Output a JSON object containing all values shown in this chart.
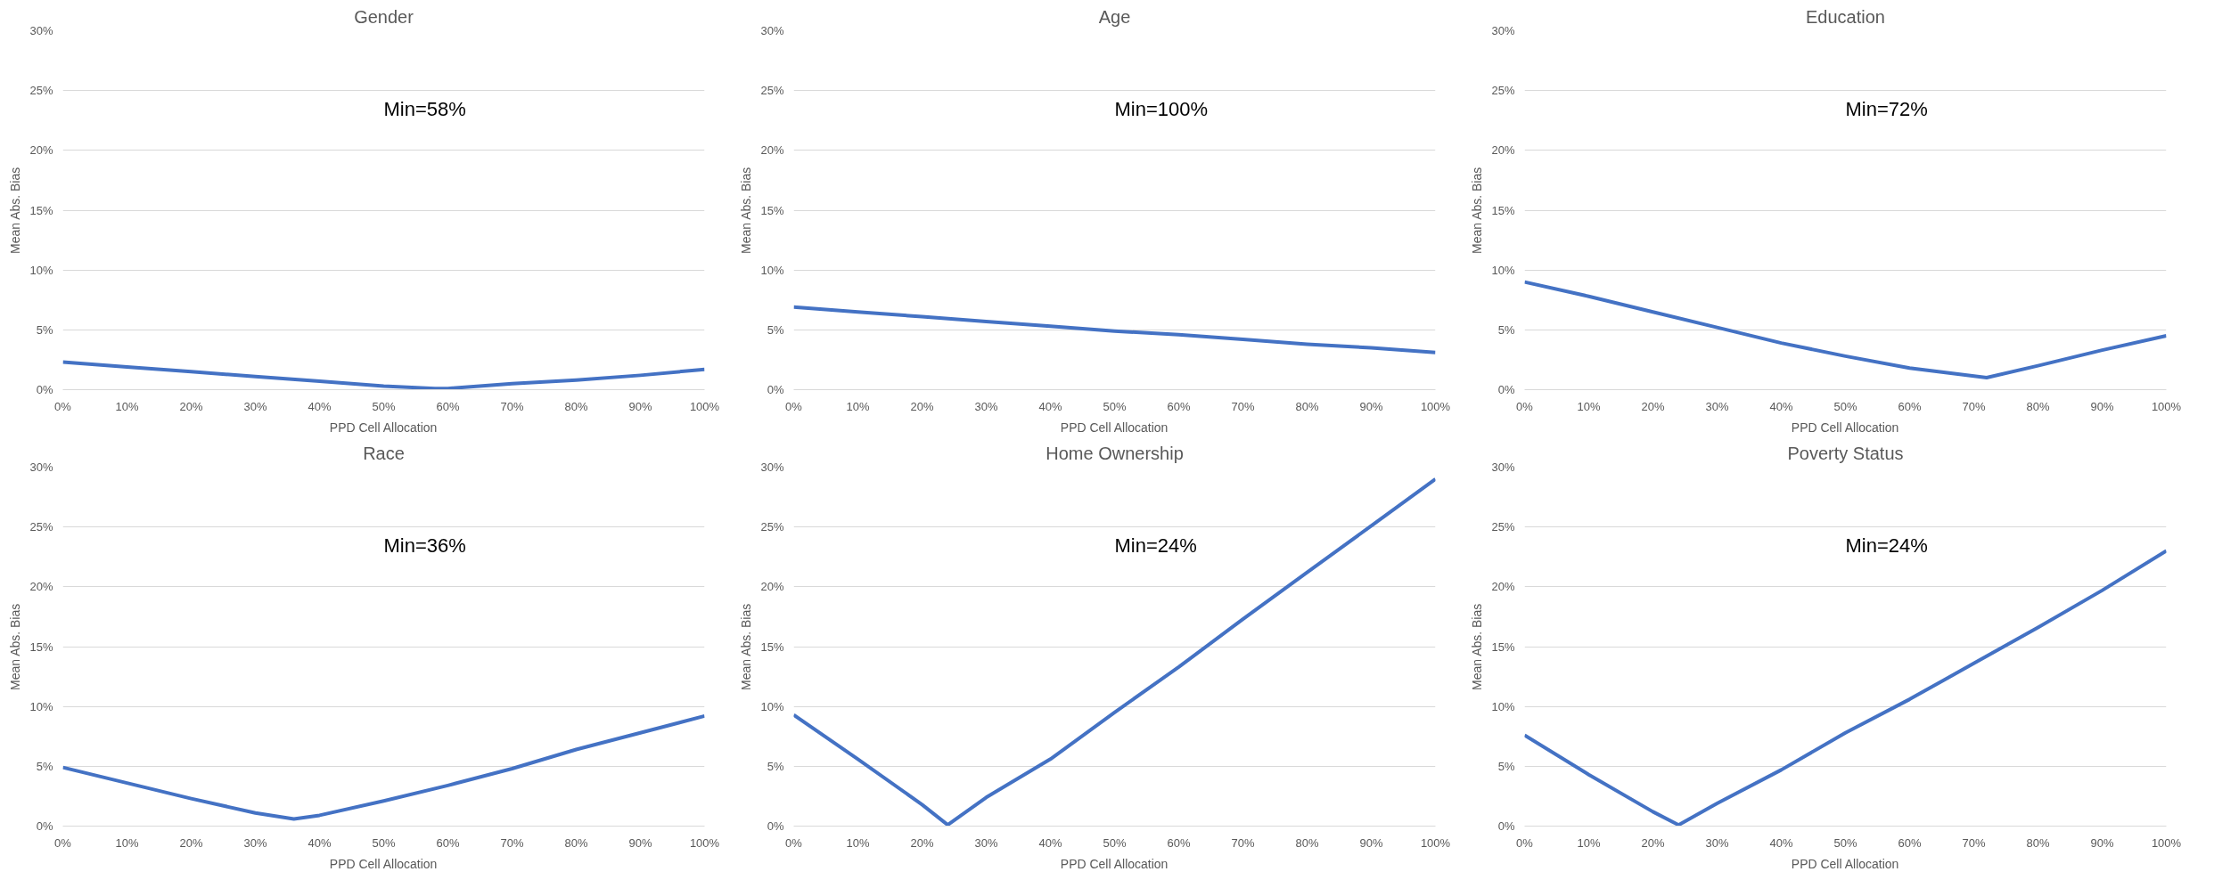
{
  "chart_data": [
    {
      "type": "line",
      "title": "Gender",
      "xlabel": "PPD Cell Allocation",
      "ylabel": "Mean Abs. Bias",
      "x": [
        0,
        10,
        20,
        30,
        40,
        50,
        58,
        60,
        70,
        80,
        90,
        100
      ],
      "values": [
        2.3,
        1.9,
        1.5,
        1.1,
        0.7,
        0.3,
        0.1,
        0.1,
        0.5,
        0.8,
        1.2,
        1.7
      ],
      "color": "#4472c4",
      "xlim": [
        0,
        100
      ],
      "ylim": [
        0,
        30
      ],
      "xticks": [
        {
          "value": 0,
          "label": "0%"
        },
        {
          "value": 10,
          "label": "10%"
        },
        {
          "value": 20,
          "label": "20%"
        },
        {
          "value": 30,
          "label": "30%"
        },
        {
          "value": 40,
          "label": "40%"
        },
        {
          "value": 50,
          "label": "50%"
        },
        {
          "value": 60,
          "label": "60%"
        },
        {
          "value": 70,
          "label": "70%"
        },
        {
          "value": 80,
          "label": "80%"
        },
        {
          "value": 90,
          "label": "90%"
        },
        {
          "value": 100,
          "label": "100%"
        }
      ],
      "yticks": [
        {
          "value": 0,
          "label": "0%"
        },
        {
          "value": 5,
          "label": "5%"
        },
        {
          "value": 10,
          "label": "10%"
        },
        {
          "value": 15,
          "label": "15%"
        },
        {
          "value": 20,
          "label": "20%"
        },
        {
          "value": 25,
          "label": "25%"
        },
        {
          "value": 30,
          "label": "30%"
        }
      ],
      "grid": "y",
      "annotations": [
        "Min=58%"
      ]
    },
    {
      "type": "line",
      "title": "Age",
      "xlabel": "PPD Cell Allocation",
      "ylabel": "Mean Abs. Bias",
      "x": [
        0,
        10,
        20,
        30,
        40,
        50,
        60,
        70,
        80,
        90,
        100
      ],
      "values": [
        6.9,
        6.5,
        6.1,
        5.7,
        5.3,
        4.9,
        4.6,
        4.2,
        3.8,
        3.5,
        3.1
      ],
      "color": "#4472c4",
      "xlim": [
        0,
        100
      ],
      "ylim": [
        0,
        30
      ],
      "xticks": [
        {
          "value": 0,
          "label": "0%"
        },
        {
          "value": 10,
          "label": "10%"
        },
        {
          "value": 20,
          "label": "20%"
        },
        {
          "value": 30,
          "label": "30%"
        },
        {
          "value": 40,
          "label": "40%"
        },
        {
          "value": 50,
          "label": "50%"
        },
        {
          "value": 60,
          "label": "60%"
        },
        {
          "value": 70,
          "label": "70%"
        },
        {
          "value": 80,
          "label": "80%"
        },
        {
          "value": 90,
          "label": "90%"
        },
        {
          "value": 100,
          "label": "100%"
        }
      ],
      "yticks": [
        {
          "value": 0,
          "label": "0%"
        },
        {
          "value": 5,
          "label": "5%"
        },
        {
          "value": 10,
          "label": "10%"
        },
        {
          "value": 15,
          "label": "15%"
        },
        {
          "value": 20,
          "label": "20%"
        },
        {
          "value": 25,
          "label": "25%"
        },
        {
          "value": 30,
          "label": "30%"
        }
      ],
      "grid": "y",
      "annotations": [
        "Min=100%"
      ]
    },
    {
      "type": "line",
      "title": "Education",
      "xlabel": "PPD Cell Allocation",
      "ylabel": "Mean Abs. Bias",
      "x": [
        0,
        10,
        20,
        30,
        40,
        50,
        60,
        72,
        80,
        90,
        100
      ],
      "values": [
        9.0,
        7.8,
        6.5,
        5.2,
        3.9,
        2.8,
        1.8,
        1.0,
        2.0,
        3.3,
        4.5
      ],
      "color": "#4472c4",
      "xlim": [
        0,
        100
      ],
      "ylim": [
        0,
        30
      ],
      "xticks": [
        {
          "value": 0,
          "label": "0%"
        },
        {
          "value": 10,
          "label": "10%"
        },
        {
          "value": 20,
          "label": "20%"
        },
        {
          "value": 30,
          "label": "30%"
        },
        {
          "value": 40,
          "label": "40%"
        },
        {
          "value": 50,
          "label": "50%"
        },
        {
          "value": 60,
          "label": "60%"
        },
        {
          "value": 70,
          "label": "70%"
        },
        {
          "value": 80,
          "label": "80%"
        },
        {
          "value": 90,
          "label": "90%"
        },
        {
          "value": 100,
          "label": "100%"
        }
      ],
      "yticks": [
        {
          "value": 0,
          "label": "0%"
        },
        {
          "value": 5,
          "label": "5%"
        },
        {
          "value": 10,
          "label": "10%"
        },
        {
          "value": 15,
          "label": "15%"
        },
        {
          "value": 20,
          "label": "20%"
        },
        {
          "value": 25,
          "label": "25%"
        },
        {
          "value": 30,
          "label": "30%"
        }
      ],
      "grid": "y",
      "annotations": [
        "Min=72%"
      ]
    },
    {
      "type": "line",
      "title": "Race",
      "xlabel": "PPD Cell Allocation",
      "ylabel": "Mean Abs. Bias",
      "x": [
        0,
        10,
        20,
        30,
        36,
        40,
        50,
        60,
        70,
        80,
        90,
        100
      ],
      "values": [
        4.9,
        3.6,
        2.3,
        1.1,
        0.6,
        0.9,
        2.1,
        3.4,
        4.8,
        6.4,
        7.8,
        9.2
      ],
      "color": "#4472c4",
      "xlim": [
        0,
        100
      ],
      "ylim": [
        0,
        30
      ],
      "xticks": [
        {
          "value": 0,
          "label": "0%"
        },
        {
          "value": 10,
          "label": "10%"
        },
        {
          "value": 20,
          "label": "20%"
        },
        {
          "value": 30,
          "label": "30%"
        },
        {
          "value": 40,
          "label": "40%"
        },
        {
          "value": 50,
          "label": "50%"
        },
        {
          "value": 60,
          "label": "60%"
        },
        {
          "value": 70,
          "label": "70%"
        },
        {
          "value": 80,
          "label": "80%"
        },
        {
          "value": 90,
          "label": "90%"
        },
        {
          "value": 100,
          "label": "100%"
        }
      ],
      "yticks": [
        {
          "value": 0,
          "label": "0%"
        },
        {
          "value": 5,
          "label": "5%"
        },
        {
          "value": 10,
          "label": "10%"
        },
        {
          "value": 15,
          "label": "15%"
        },
        {
          "value": 20,
          "label": "20%"
        },
        {
          "value": 25,
          "label": "25%"
        },
        {
          "value": 30,
          "label": "30%"
        }
      ],
      "grid": "y",
      "annotations": [
        "Min=36%"
      ]
    },
    {
      "type": "line",
      "title": "Home Ownership",
      "xlabel": "PPD Cell Allocation",
      "ylabel": "Mean Abs. Bias",
      "x": [
        0,
        10,
        20,
        24,
        30,
        40,
        50,
        60,
        70,
        80,
        90,
        100
      ],
      "values": [
        9.3,
        5.6,
        1.8,
        0.1,
        2.4,
        5.6,
        9.5,
        13.3,
        17.3,
        21.2,
        25.1,
        29.0
      ],
      "color": "#4472c4",
      "xlim": [
        0,
        100
      ],
      "ylim": [
        0,
        30
      ],
      "xticks": [
        {
          "value": 0,
          "label": "0%"
        },
        {
          "value": 10,
          "label": "10%"
        },
        {
          "value": 20,
          "label": "20%"
        },
        {
          "value": 30,
          "label": "30%"
        },
        {
          "value": 40,
          "label": "40%"
        },
        {
          "value": 50,
          "label": "50%"
        },
        {
          "value": 60,
          "label": "60%"
        },
        {
          "value": 70,
          "label": "70%"
        },
        {
          "value": 80,
          "label": "80%"
        },
        {
          "value": 90,
          "label": "90%"
        },
        {
          "value": 100,
          "label": "100%"
        }
      ],
      "yticks": [
        {
          "value": 0,
          "label": "0%"
        },
        {
          "value": 5,
          "label": "5%"
        },
        {
          "value": 10,
          "label": "10%"
        },
        {
          "value": 15,
          "label": "15%"
        },
        {
          "value": 20,
          "label": "20%"
        },
        {
          "value": 25,
          "label": "25%"
        },
        {
          "value": 30,
          "label": "30%"
        }
      ],
      "grid": "y",
      "annotations": [
        "Min=24%"
      ]
    },
    {
      "type": "line",
      "title": "Poverty Status",
      "xlabel": "PPD Cell Allocation",
      "ylabel": "Mean Abs. Bias",
      "x": [
        0,
        10,
        20,
        24,
        30,
        40,
        50,
        60,
        70,
        80,
        90,
        100
      ],
      "values": [
        7.6,
        4.3,
        1.2,
        0.1,
        1.9,
        4.7,
        7.8,
        10.6,
        13.6,
        16.6,
        19.7,
        23.0
      ],
      "color": "#4472c4",
      "xlim": [
        0,
        100
      ],
      "ylim": [
        0,
        30
      ],
      "xticks": [
        {
          "value": 0,
          "label": "0%"
        },
        {
          "value": 10,
          "label": "10%"
        },
        {
          "value": 20,
          "label": "20%"
        },
        {
          "value": 30,
          "label": "30%"
        },
        {
          "value": 40,
          "label": "40%"
        },
        {
          "value": 50,
          "label": "50%"
        },
        {
          "value": 60,
          "label": "60%"
        },
        {
          "value": 70,
          "label": "70%"
        },
        {
          "value": 80,
          "label": "80%"
        },
        {
          "value": 90,
          "label": "90%"
        },
        {
          "value": 100,
          "label": "100%"
        }
      ],
      "yticks": [
        {
          "value": 0,
          "label": "0%"
        },
        {
          "value": 5,
          "label": "5%"
        },
        {
          "value": 10,
          "label": "10%"
        },
        {
          "value": 15,
          "label": "15%"
        },
        {
          "value": 20,
          "label": "20%"
        },
        {
          "value": 25,
          "label": "25%"
        },
        {
          "value": 30,
          "label": "30%"
        }
      ],
      "grid": "y",
      "annotations": [
        "Min=24%"
      ]
    }
  ]
}
